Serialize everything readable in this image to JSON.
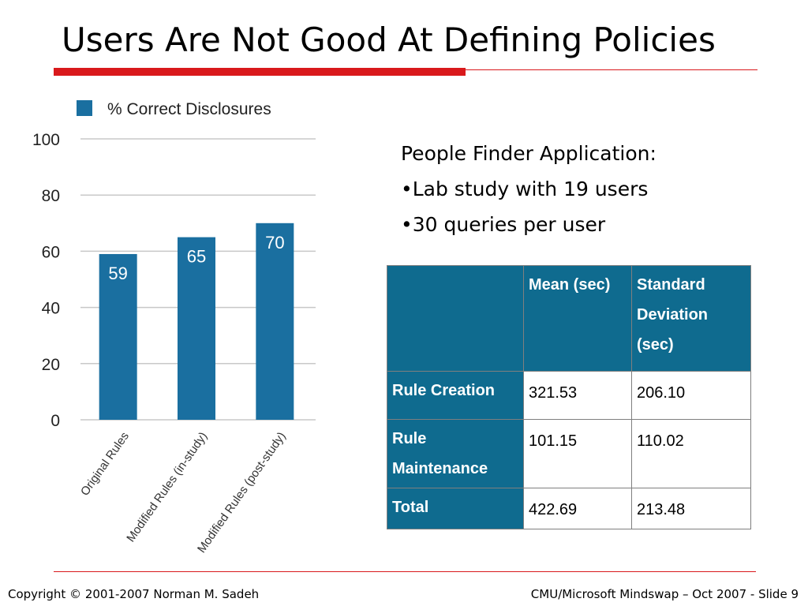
{
  "slide": {
    "title": "Users Are Not Good At Defining Policies",
    "bullets": [
      "People Finder Application:",
      "•Lab study with 19 users",
      "•30 queries per user"
    ],
    "footer_left": "Copyright © 2001-2007 Norman M. Sadeh",
    "footer_right": "CMU/Microsoft Mindswap – Oct  2007 - Slide 9",
    "colors": {
      "accent_red": "#d9191c",
      "bar_blue": "#1a6fa0",
      "table_header": "#0f6b8f"
    }
  },
  "chart_data": {
    "type": "bar",
    "categories": [
      "Original Rules",
      "Modified Rules (in-study)",
      "Modified Rules (post-study)"
    ],
    "series": [
      {
        "name": "% Correct Disclosures",
        "values": [
          59,
          65,
          70
        ]
      }
    ],
    "ylim": [
      0,
      100
    ],
    "yticks": [
      0,
      20,
      40,
      60,
      80,
      100
    ],
    "grid": true,
    "legend": "top-left",
    "data_labels": true
  },
  "table": {
    "headers": [
      "",
      "Mean (sec)",
      "Standard Deviation (sec)"
    ],
    "rows": [
      {
        "label": "Rule Creation",
        "mean": "321.53",
        "sd": "206.10"
      },
      {
        "label": "Rule Maintenance",
        "mean": "101.15",
        "sd": "110.02"
      },
      {
        "label": "Total",
        "mean": "422.69",
        "sd": "213.48"
      }
    ]
  }
}
